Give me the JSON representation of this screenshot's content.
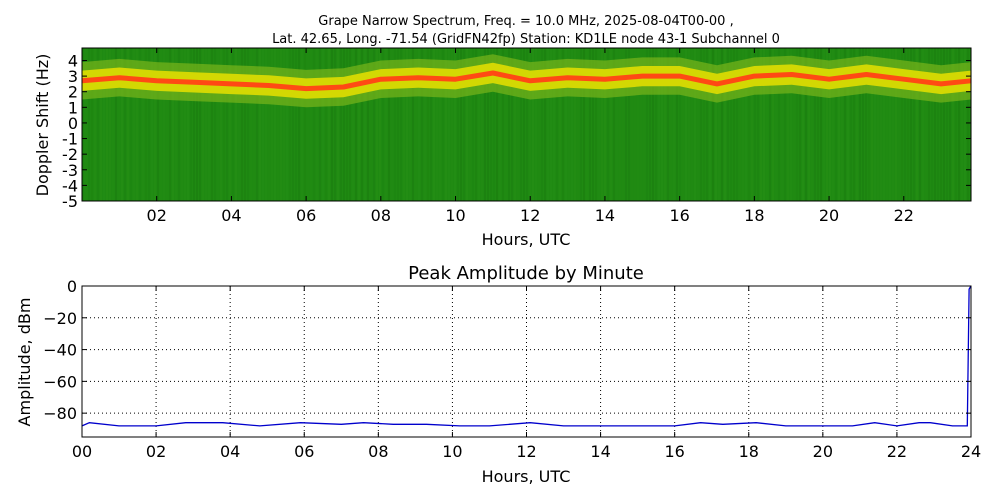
{
  "colors": {
    "spectrogram_background": "#1f8a12",
    "spectrogram_band_mid": "#e8e000",
    "spectrogram_band_core": "#ff4a14",
    "line": "#0000cc",
    "grid": "#000000"
  },
  "chart_data": [
    {
      "type": "heatmap",
      "title_line1": "Grape Narrow Spectrum, Freq. = 10.0 MHz, 2025-08-04T00-00 ,",
      "title_line2": "Lat.  42.65, Long. -71.54 (GridFN42fp) Station: KD1LE node 43-1 Subchannel 0",
      "xlabel": "Hours, UTC",
      "ylabel": "Doppler Shift (Hz)",
      "xlim": [
        0,
        23.8
      ],
      "ylim": [
        -5,
        4.8
      ],
      "x_ticks": [
        "02",
        "04",
        "06",
        "08",
        "10",
        "12",
        "14",
        "16",
        "18",
        "20",
        "22"
      ],
      "y_ticks": [
        "4",
        "3",
        "2",
        "1",
        "0",
        "-1",
        "-2",
        "-3",
        "-4",
        "-5"
      ],
      "doppler_peak_track": {
        "hours": [
          0,
          1,
          2,
          3,
          4,
          5,
          6,
          7,
          8,
          9,
          10,
          11,
          12,
          13,
          14,
          15,
          16,
          17,
          18,
          19,
          20,
          21,
          22,
          23,
          23.8
        ],
        "hz": [
          2.7,
          2.9,
          2.7,
          2.6,
          2.5,
          2.4,
          2.2,
          2.3,
          2.8,
          2.9,
          2.8,
          3.2,
          2.7,
          2.9,
          2.8,
          3.0,
          3.0,
          2.5,
          3.0,
          3.1,
          2.8,
          3.1,
          2.8,
          2.5,
          2.7
        ]
      }
    },
    {
      "type": "line",
      "title": "Peak Amplitude by Minute",
      "xlabel": "Hours, UTC",
      "ylabel": "Amplitude, dBm",
      "xlim": [
        0,
        24
      ],
      "ylim": [
        -95,
        0
      ],
      "grid": true,
      "x_ticks": [
        "00",
        "02",
        "04",
        "06",
        "08",
        "10",
        "12",
        "14",
        "16",
        "18",
        "20",
        "22",
        "24"
      ],
      "y_ticks": [
        "0",
        "−20",
        "−40",
        "−60",
        "−80"
      ],
      "series": [
        {
          "x": [
            0,
            0.2,
            1,
            2,
            2.8,
            3.8,
            4.8,
            5.9,
            7.0,
            7.6,
            8.4,
            9.3,
            10.2,
            11.0,
            12.1,
            13.0,
            14.0,
            15.0,
            16.0,
            16.7,
            17.3,
            18.2,
            19.0,
            20.0,
            20.8,
            21.4,
            22.0,
            22.6,
            22.9,
            23.5,
            23.9,
            23.95,
            24
          ],
          "y": [
            -88,
            -86,
            -88,
            -88,
            -86,
            -86,
            -88,
            -86,
            -87,
            -86,
            -87,
            -87,
            -88,
            -88,
            -86,
            -88,
            -88,
            -88,
            -88,
            -86,
            -87,
            -86,
            -88,
            -88,
            -88,
            -86,
            -88,
            -86,
            -86,
            -88,
            -88,
            -2,
            0
          ]
        }
      ]
    }
  ]
}
